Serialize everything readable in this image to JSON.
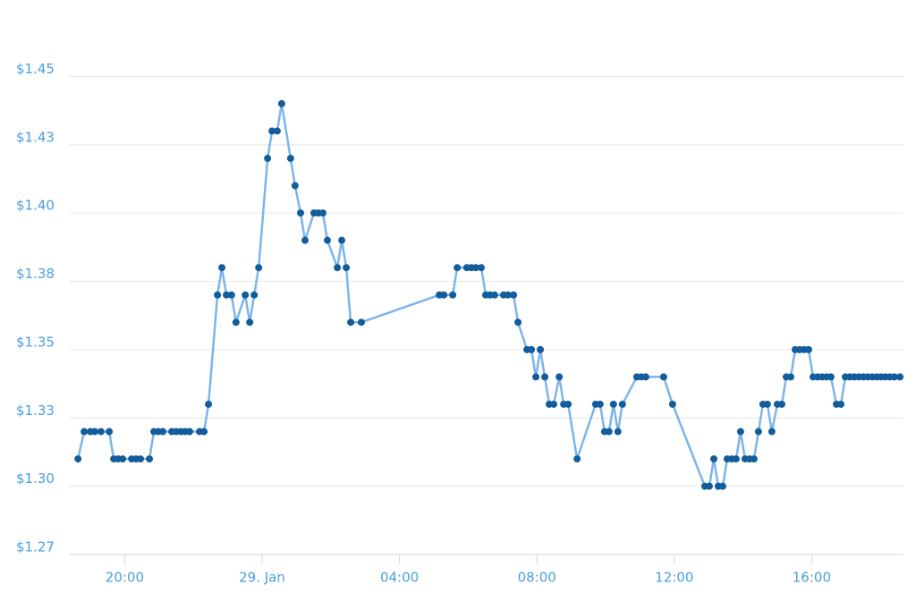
{
  "chart_data": {
    "type": "line",
    "x": [
      -5.36,
      -5.18,
      -5.0,
      -4.87,
      -4.69,
      -4.45,
      -4.32,
      -4.19,
      -4.06,
      -3.8,
      -3.67,
      -3.54,
      -3.28,
      -3.15,
      -3.02,
      -2.89,
      -2.63,
      -2.5,
      -2.37,
      -2.24,
      -2.11,
      -1.82,
      -1.69,
      -1.56,
      -1.3,
      -1.17,
      -1.04,
      -0.89,
      -0.76,
      -0.49,
      -0.36,
      -0.23,
      -0.1,
      0.16,
      0.29,
      0.44,
      0.57,
      0.83,
      0.96,
      1.12,
      1.25,
      1.51,
      1.64,
      1.77,
      1.9,
      2.19,
      2.32,
      2.45,
      2.58,
      2.89,
      5.16,
      5.29,
      5.55,
      5.68,
      5.96,
      6.09,
      6.22,
      6.38,
      6.51,
      6.64,
      6.77,
      7.03,
      7.16,
      7.32,
      7.45,
      7.71,
      7.84,
      7.97,
      8.1,
      8.23,
      8.36,
      8.49,
      8.65,
      8.78,
      8.91,
      9.17,
      9.71,
      9.84,
      9.97,
      10.1,
      10.23,
      10.36,
      10.49,
      10.91,
      11.04,
      11.17,
      11.69,
      11.95,
      12.89,
      13.02,
      13.15,
      13.28,
      13.41,
      13.54,
      13.67,
      13.8,
      13.93,
      14.06,
      14.19,
      14.32,
      14.45,
      14.58,
      14.71,
      14.84,
      15.0,
      15.13,
      15.26,
      15.39,
      15.52,
      15.65,
      15.78,
      15.91,
      16.04,
      16.17,
      16.3,
      16.43,
      16.56,
      16.72,
      16.85,
      16.98,
      17.11,
      17.24,
      17.37,
      17.5,
      17.63,
      17.76,
      17.89,
      18.02,
      18.15,
      18.28,
      18.41,
      18.57
    ],
    "values": [
      1.31,
      1.32,
      1.32,
      1.32,
      1.32,
      1.32,
      1.31,
      1.31,
      1.31,
      1.31,
      1.31,
      1.31,
      1.31,
      1.32,
      1.32,
      1.32,
      1.32,
      1.32,
      1.32,
      1.32,
      1.32,
      1.32,
      1.32,
      1.33,
      1.37,
      1.38,
      1.37,
      1.37,
      1.36,
      1.37,
      1.36,
      1.37,
      1.38,
      1.42,
      1.43,
      1.43,
      1.44,
      1.42,
      1.41,
      1.4,
      1.39,
      1.4,
      1.4,
      1.4,
      1.39,
      1.38,
      1.39,
      1.38,
      1.36,
      1.36,
      1.37,
      1.37,
      1.37,
      1.38,
      1.38,
      1.38,
      1.38,
      1.38,
      1.37,
      1.37,
      1.37,
      1.37,
      1.37,
      1.37,
      1.36,
      1.35,
      1.35,
      1.34,
      1.35,
      1.34,
      1.33,
      1.33,
      1.34,
      1.33,
      1.33,
      1.31,
      1.33,
      1.33,
      1.32,
      1.32,
      1.33,
      1.32,
      1.33,
      1.34,
      1.34,
      1.34,
      1.34,
      1.33,
      1.3,
      1.3,
      1.31,
      1.3,
      1.3,
      1.31,
      1.31,
      1.31,
      1.32,
      1.31,
      1.31,
      1.31,
      1.32,
      1.33,
      1.33,
      1.32,
      1.33,
      1.33,
      1.34,
      1.34,
      1.35,
      1.35,
      1.35,
      1.35,
      1.34,
      1.34,
      1.34,
      1.34,
      1.34,
      1.33,
      1.33,
      1.34,
      1.34,
      1.34,
      1.34,
      1.34,
      1.34,
      1.34,
      1.34,
      1.34,
      1.34,
      1.34,
      1.34,
      1.34
    ],
    "color": "#7cb5ec",
    "marker_color": "#135d9c",
    "xlim": [
      -5.625,
      18.672
    ],
    "xticks": [
      {
        "value": -4,
        "label": "20:00"
      },
      {
        "value": 0,
        "label": "29. Jan"
      },
      {
        "value": 4,
        "label": "04:00"
      },
      {
        "value": 8,
        "label": "08:00"
      },
      {
        "value": 12,
        "label": "12:00"
      },
      {
        "value": 16,
        "label": "16:00"
      }
    ],
    "ylim": [
      1.275,
      1.475
    ],
    "yticks": [
      {
        "value": 1.275,
        "label": "$1.27"
      },
      {
        "value": 1.3,
        "label": "$1.30"
      },
      {
        "value": 1.325,
        "label": "$1.33"
      },
      {
        "value": 1.35,
        "label": "$1.35"
      },
      {
        "value": 1.375,
        "label": "$1.38"
      },
      {
        "value": 1.4,
        "label": "$1.40"
      },
      {
        "value": 1.425,
        "label": "$1.43"
      },
      {
        "value": 1.45,
        "label": "$1.45"
      }
    ],
    "grid": true
  }
}
